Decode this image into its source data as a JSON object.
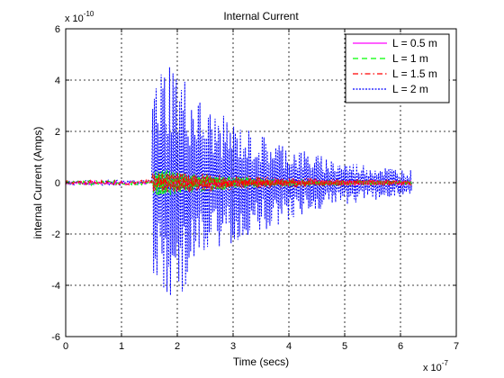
{
  "chart_data": {
    "type": "line",
    "title": "Internal Current",
    "xlabel": "Time (secs)",
    "ylabel": "internal Current (Amps)",
    "x_multiplier": {
      "base": "x 10",
      "exponent": "-7"
    },
    "y_multiplier": {
      "base": "x 10",
      "exponent": "-10"
    },
    "xlim": [
      0,
      7
    ],
    "ylim": [
      -6,
      6
    ],
    "xticks": [
      "0",
      "1",
      "2",
      "3",
      "4",
      "5",
      "6",
      "7"
    ],
    "yticks": [
      "-6",
      "-4",
      "-2",
      "0",
      "2",
      "4",
      "6"
    ],
    "grid": true,
    "legend_position": "top-right",
    "signal_start": 1.55,
    "signal_end": 6.2,
    "series": [
      {
        "name": "L = 0.5 m",
        "color": "#ff00ff",
        "line_style": "solid",
        "noise_amplitude": 0.08,
        "envelope_points": [
          [
            1.55,
            0.1
          ],
          [
            6.2,
            0.1
          ]
        ]
      },
      {
        "name": "L = 1 m",
        "color": "#00ff00",
        "line_style": "dashed",
        "noise_amplitude": 0.1,
        "envelope_points": [
          [
            1.55,
            0.6
          ],
          [
            2.0,
            0.45
          ],
          [
            3.0,
            0.25
          ],
          [
            4.0,
            0.15
          ],
          [
            5.0,
            0.1
          ],
          [
            6.2,
            0.08
          ]
        ]
      },
      {
        "name": "L = 1.5 m",
        "color": "#ff0000",
        "line_style": "dashdot",
        "noise_amplitude": 0.1,
        "envelope_points": [
          [
            1.55,
            0.45
          ],
          [
            2.0,
            0.4
          ],
          [
            3.0,
            0.3
          ],
          [
            4.0,
            0.2
          ],
          [
            5.0,
            0.15
          ],
          [
            6.2,
            0.1
          ]
        ]
      },
      {
        "name": "L = 2 m",
        "color": "#0000ff",
        "line_style": "dotted",
        "noise_amplitude": 0.1,
        "envelope_points": [
          [
            1.55,
            4.1
          ],
          [
            1.9,
            5.2
          ],
          [
            2.0,
            4.6
          ],
          [
            2.5,
            3.0
          ],
          [
            3.0,
            2.4
          ],
          [
            3.5,
            1.9
          ],
          [
            4.0,
            1.5
          ],
          [
            4.5,
            1.1
          ],
          [
            5.0,
            0.85
          ],
          [
            5.5,
            0.7
          ],
          [
            6.2,
            0.5
          ]
        ]
      }
    ]
  }
}
